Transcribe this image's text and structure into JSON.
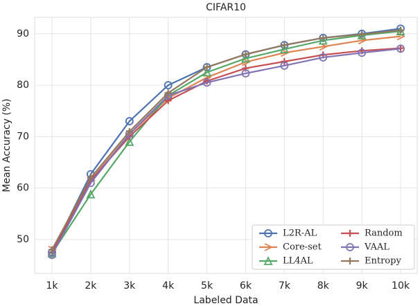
{
  "chart_data": {
    "type": "line",
    "title": "CIFAR10",
    "x_label": "Labeled Data",
    "y_label": "Mean Accuracy (%)",
    "categories": [
      "1k",
      "2k",
      "3k",
      "4k",
      "5k",
      "6k",
      "7k",
      "8k",
      "9k",
      "10k"
    ],
    "series": [
      {
        "name": "L2R-AL",
        "color": "#4c72b0",
        "values": [
          47.5,
          62.7,
          73,
          80,
          83.5,
          86,
          87.8,
          89.2,
          90,
          91
        ]
      },
      {
        "name": "Core-set",
        "color": "#dd8452",
        "values": [
          48,
          61.5,
          70.5,
          77.5,
          81.5,
          84.5,
          86.3,
          87.5,
          88.7,
          89.5
        ]
      },
      {
        "name": "LL4AL",
        "color": "#55a868",
        "values": [
          47.3,
          58.8,
          69,
          78,
          82.5,
          85.2,
          87,
          88.7,
          89.7,
          90.5
        ]
      },
      {
        "name": "Random",
        "color": "#c44e52",
        "values": [
          47.5,
          61.5,
          70,
          77,
          80.8,
          83.3,
          84.6,
          85.9,
          86.7,
          87.2
        ]
      },
      {
        "name": "VAAL",
        "color": "#8172b3",
        "values": [
          47,
          61,
          70.5,
          78,
          80.5,
          82.3,
          83.8,
          85.4,
          86.3,
          87.1
        ]
      },
      {
        "name": "Entropy",
        "color": "#937860",
        "values": [
          48,
          62,
          71,
          78.5,
          83.5,
          86,
          87.8,
          89.2,
          89.9,
          90.7
        ]
      }
    ],
    "ylim": [
      43.4,
      93.2
    ],
    "yticks": [
      50,
      60,
      70,
      80,
      90
    ],
    "grid": true,
    "legend": "lower right"
  }
}
